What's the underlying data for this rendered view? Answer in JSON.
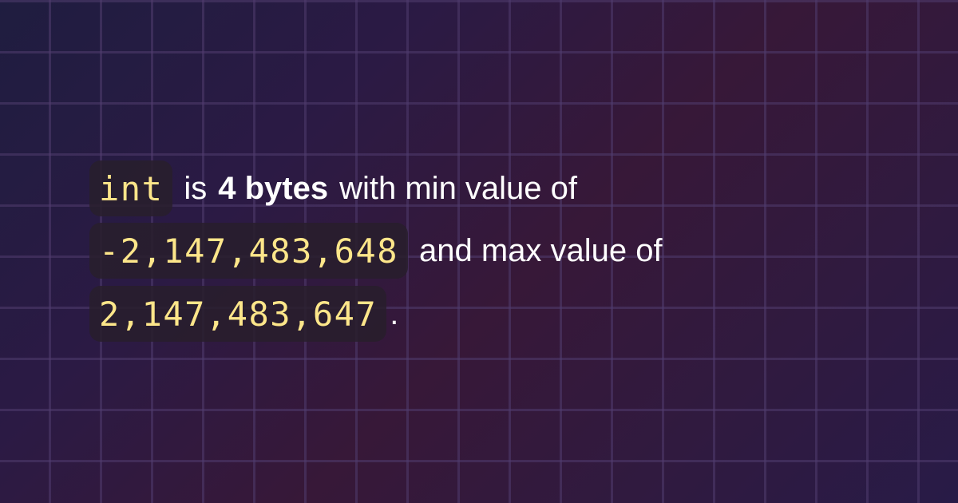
{
  "colors": {
    "background_start": "#1f1d40",
    "background_mid": "#371838",
    "code_text": "#fde68a",
    "code_bg": "#281e2c",
    "text": "#ffffff"
  },
  "sentence": {
    "code_type": "int",
    "text_is": "is",
    "bold_size": "4 bytes",
    "text_min": "with min value of",
    "min_value": "-2,147,483,648",
    "text_max": "and max value of",
    "max_value": "2,147,483,647",
    "period": "."
  }
}
